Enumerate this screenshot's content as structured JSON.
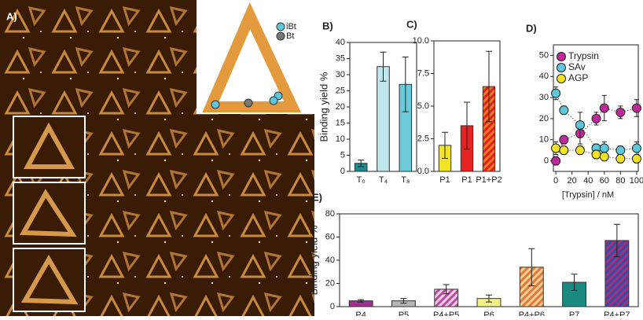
{
  "panel_a": {
    "label": "A)",
    "legend": [
      "iBt",
      "Bt"
    ]
  },
  "chart_data": [
    {
      "type": "bar",
      "panel": "B)",
      "y_label": "Binding yield %",
      "categories": [
        "T₀",
        "T₄",
        "T₈"
      ],
      "values": [
        2.5,
        32.5,
        27
      ],
      "errors": [
        1,
        4.5,
        8.5
      ],
      "colors": [
        "#1a8a8a",
        "#c2e6ee",
        "#6cc9d8"
      ],
      "hatch_colors": [
        null,
        null,
        null
      ],
      "ylim": [
        0,
        40
      ],
      "yticks": [
        0,
        5,
        10,
        15,
        20,
        25,
        30,
        35,
        40
      ]
    },
    {
      "type": "bar",
      "panel": "C)",
      "categories": [
        "P1",
        "P1",
        "P1+P2"
      ],
      "values": [
        2,
        3.5,
        6.5
      ],
      "errors": [
        1,
        1.8,
        2.7
      ],
      "colors": [
        "#f2e422",
        "#e82222",
        "#f07a1a"
      ],
      "hatch_colors": [
        null,
        null,
        "#e02020"
      ],
      "ylim": [
        0,
        10
      ],
      "yticks": [
        {
          "value": 0,
          "label": "0.0"
        },
        {
          "value": 2.5,
          "label": "2.5"
        },
        {
          "value": 5,
          "label": "5.0"
        },
        {
          "value": 7.5,
          "label": "7.5"
        },
        {
          "value": 10,
          "label": "10.0"
        }
      ]
    },
    {
      "type": "scatter",
      "panel": "D)",
      "x_label": "[Trypsin] / nM",
      "x": [
        0,
        10,
        30,
        50,
        60,
        80,
        100
      ],
      "series": [
        {
          "name": "Trypsin",
          "color": "#c0289a",
          "values": [
            0,
            10,
            13,
            20,
            25,
            23,
            25
          ],
          "errors": [
            2,
            2,
            5,
            3,
            6,
            3,
            4
          ]
        },
        {
          "name": "SAv",
          "color": "#5cc8dc",
          "values": [
            32,
            24,
            17,
            6,
            6,
            5,
            6
          ],
          "errors": [
            3,
            2,
            6,
            2,
            3,
            2,
            3
          ]
        },
        {
          "name": "AGP",
          "color": "#f2e422",
          "values": [
            6,
            5,
            5,
            3,
            2,
            1,
            1
          ],
          "errors": [
            3,
            2,
            2,
            2,
            2,
            2,
            2
          ]
        }
      ],
      "xlim": [
        -3,
        102
      ],
      "xticks": [
        0,
        20,
        40,
        60,
        80,
        100
      ],
      "ylim": [
        -5,
        55
      ],
      "yticks": [
        0,
        10,
        20,
        30,
        40,
        50
      ]
    },
    {
      "type": "bar",
      "panel": "E)",
      "y_label": "Binding yield %",
      "categories": [
        "P4",
        "P5",
        "P4+P5",
        "P6",
        "P4+P6",
        "P7",
        "P4+P7"
      ],
      "values": [
        5,
        5,
        15,
        7,
        34,
        21,
        57
      ],
      "errors": [
        1,
        2,
        4,
        3,
        16,
        7,
        14
      ],
      "colors": [
        "#a0308f",
        "#b5b5b5",
        "#f4c8e0",
        "#f6f08a",
        "#f5d090",
        "#1a8a80",
        "#3a4aa0"
      ],
      "hatch_colors": [
        null,
        null,
        "#b050a0",
        null,
        "#e07840",
        null,
        "#a03080"
      ],
      "ylim": [
        0,
        80
      ],
      "yticks": [
        0,
        20,
        40,
        60,
        80
      ]
    }
  ]
}
